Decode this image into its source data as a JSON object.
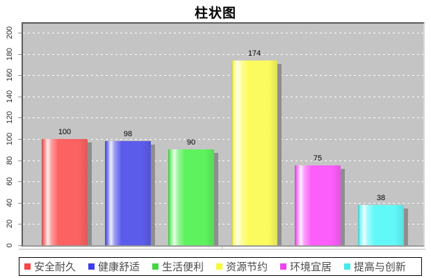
{
  "title": "柱状图",
  "chart_data": {
    "type": "bar",
    "title": "柱状图",
    "categories": [
      "安全耐久",
      "健康舒适",
      "生活便利",
      "资源节约",
      "环境宜居",
      "提高与创新"
    ],
    "values": [
      100,
      98,
      90,
      174,
      75,
      38
    ],
    "value_labels": [
      "100",
      "98",
      "90",
      "174",
      "75",
      "38"
    ],
    "bar_colors": [
      "#fb6262",
      "#5c5cea",
      "#5ef25e",
      "#fbfb60",
      "#fb5efb",
      "#62f8f8"
    ],
    "legend_colors": [
      "#f84545",
      "#3c3cf0",
      "#42d642",
      "#f8f83c",
      "#ee42ee",
      "#48e9e9"
    ],
    "xlabel": "",
    "ylabel": "",
    "ylim": [
      0,
      200
    ],
    "ytick_step": 20,
    "yticks": [
      0,
      20,
      40,
      60,
      80,
      100,
      120,
      140,
      160,
      180,
      200
    ],
    "grid": "horizontal white dashed",
    "legend_position": "bottom",
    "plot_background": "#c4c4c4",
    "grid_color": "#ffffff",
    "shadow_color": "#8e8e8e",
    "axis_line_color": "#b4b4b4",
    "legend_border_color": "#000000",
    "title_color": "#000000",
    "value_label_color": "#000000"
  }
}
